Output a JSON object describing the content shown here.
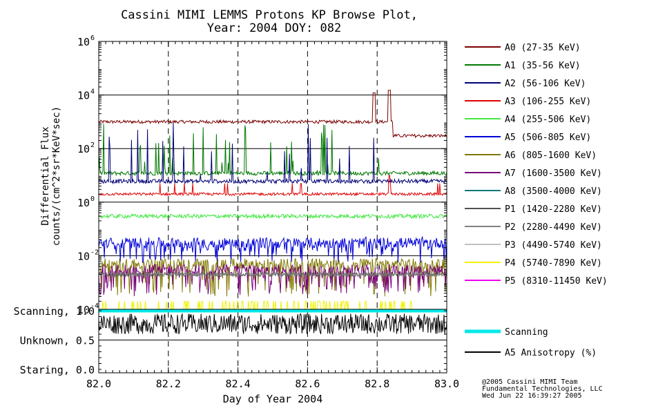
{
  "title_line1": "Cassini MIMI LEMMS Protons KP Browse Plot,",
  "title_line2": "Year: 2004 DOY: 082",
  "footer": {
    "line1": "@2005 Cassini MIMI Team",
    "line2": "Fundamental Technologies, LLC",
    "line3": "Wed Jun 22 16:39:27 2005"
  },
  "chart_data": [
    {
      "type": "line",
      "title": "Cassini MIMI LEMMS Protons KP Browse Plot, Year: 2004 DOY: 082",
      "xlabel": "Day of Year 2004",
      "ylabel_line1": "Differential Flux",
      "ylabel_line2": "counts/(cm^2*sr*KeV*sec)",
      "yscale": "log",
      "xlim": [
        82.0,
        83.0
      ],
      "ylim": [
        0.0001,
        1000000
      ],
      "x_ticks": [
        "82.0",
        "82.2",
        "82.4",
        "82.6",
        "82.8",
        "83.0"
      ],
      "y_ticks": [
        {
          "base": "10",
          "exp": "6",
          "value": 1000000
        },
        {
          "base": "10",
          "exp": "4",
          "value": 10000
        },
        {
          "base": "10",
          "exp": "2",
          "value": 100
        },
        {
          "base": "10",
          "exp": "0",
          "value": 1
        },
        {
          "base": "10",
          "exp": "-2",
          "value": 0.01
        },
        {
          "base": "10",
          "exp": "-4",
          "value": 0.0001
        }
      ],
      "x_dashed_gridlines": [
        82.2,
        82.4,
        82.6,
        82.8
      ],
      "y_solid_gridlines": [
        10000,
        100,
        1,
        0.01
      ],
      "series": [
        {
          "name": "A0 (27-35 KeV)",
          "color": "#7a0000",
          "typical": 1000,
          "spikes": [
            {
              "x": 82.79,
              "value": 12000
            },
            {
              "x": 82.835,
              "value": 15000
            }
          ],
          "after": {
            "x": 82.845,
            "value": 300
          }
        },
        {
          "name": "A1 (35-56 KeV)",
          "color": "#007800",
          "typical": 12,
          "spike_max": 1000
        },
        {
          "name": "A2 (56-106 KeV)",
          "color": "#000078",
          "typical": 6,
          "spike_max": 1000
        },
        {
          "name": "A3 (106-255 KeV)",
          "color": "#e00000",
          "typical": 2,
          "spike_max": 10
        },
        {
          "name": "A4 (255-506 KeV)",
          "color": "#40e840",
          "typical": 0.3
        },
        {
          "name": "A5 (506-805 KeV)",
          "color": "#0000d8",
          "typical": 0.03,
          "low": 0.005
        },
        {
          "name": "A6 (805-1600 KeV)",
          "color": "#807800",
          "typical": 0.005,
          "low": 0.0003
        },
        {
          "name": "A7 (1600-3500 KeV)",
          "color": "#780078",
          "typical": 0.003,
          "low": 0.0003
        },
        {
          "name": "A8 (3500-4000 KeV)",
          "color": "#007878",
          "typical": null
        },
        {
          "name": "P1 (1420-2280 KeV)",
          "color": "#505050",
          "typical": 0.002
        },
        {
          "name": "P2 (2280-4490 KeV)",
          "color": "#808080",
          "typical": 0.002
        },
        {
          "name": "P3 (4490-5740 KeV)",
          "color": "#c0c0c0",
          "typical": null
        },
        {
          "name": "P4 (5740-7890 KeV)",
          "color": "#f0f000",
          "typical": 0.0001,
          "spike_max": 0.0002
        },
        {
          "name": "P5 (8310-11450 KeV)",
          "color": "#f000f0",
          "typical": null
        }
      ]
    },
    {
      "type": "line",
      "xlim": [
        82.0,
        83.0
      ],
      "ylim": [
        0.0,
        1.0
      ],
      "y_ticks": [
        "Scanning, 1.0",
        "Unknown, 0.5",
        "Staring, 0.0"
      ],
      "y_values": [
        1.0,
        0.5,
        0.0
      ],
      "series": [
        {
          "name": "Scanning",
          "color": "#00e8e8",
          "value": 1.0
        },
        {
          "name": "A5 Anisotropy (%)",
          "color": "#000000",
          "typical": 0.8,
          "range": [
            0.6,
            0.95
          ]
        }
      ]
    }
  ]
}
